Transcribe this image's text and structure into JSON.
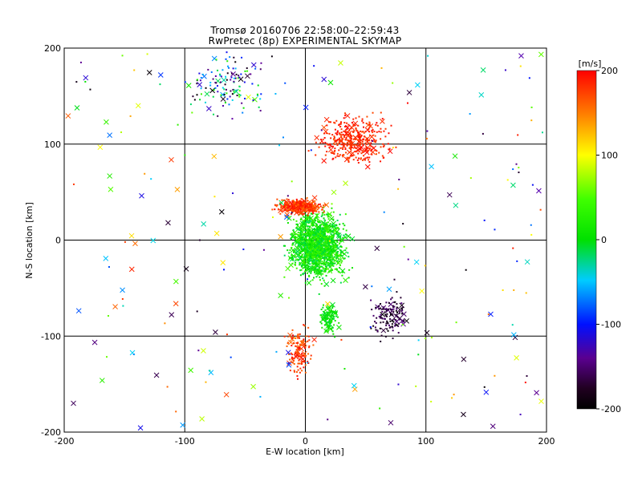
{
  "chart_data": {
    "type": "scatter",
    "title": "Tromsø 20160706 22:58:00–22:59:43",
    "subtitle": "RwPretec (8p) EXPERIMENTAL SKYMAP",
    "xlabel": "E-W location [km]",
    "ylabel": "N-S location [km]",
    "xlim": [
      -200,
      200
    ],
    "ylim": [
      -200,
      200
    ],
    "xticks": [
      "-200",
      "-100",
      "0",
      "100",
      "200"
    ],
    "yticks": [
      "-200",
      "-100",
      "0",
      "100",
      "200"
    ],
    "grid": true,
    "colorbar": {
      "label": "[m/s]",
      "range": [
        -200,
        200
      ],
      "ticks": [
        "200",
        "100",
        "0",
        "-100",
        "-200"
      ],
      "colormap": "rainbow (black-purple-blue-cyan-green-yellow-orange-red)"
    },
    "marker_types": [
      "dot",
      "x"
    ],
    "clusters": [
      {
        "region": "center main cluster",
        "x": [
          -20,
          40
        ],
        "y": [
          -50,
          40
        ],
        "velocity_range": [
          -20,
          40
        ],
        "density": "very high"
      },
      {
        "region": "red band center",
        "x": [
          -30,
          20
        ],
        "y": [
          25,
          45
        ],
        "velocity_range": [
          160,
          200
        ],
        "density": "high"
      },
      {
        "region": "northeast red cluster",
        "x": [
          0,
          80
        ],
        "y": [
          70,
          140
        ],
        "velocity_range": [
          170,
          200
        ],
        "density": "high"
      },
      {
        "region": "northwest mixed cluster",
        "x": [
          -110,
          -20
        ],
        "y": [
          120,
          200
        ],
        "velocity_range": [
          -200,
          60
        ],
        "density": "medium"
      },
      {
        "region": "southeast black cluster",
        "x": [
          50,
          90
        ],
        "y": [
          -110,
          -50
        ],
        "velocity_range": [
          -200,
          -150
        ],
        "density": "medium"
      },
      {
        "region": "south red stream",
        "x": [
          -20,
          10
        ],
        "y": [
          -150,
          -80
        ],
        "velocity_range": [
          160,
          200
        ],
        "density": "medium"
      },
      {
        "region": "south green patch",
        "x": [
          10,
          30
        ],
        "y": [
          -105,
          -60
        ],
        "velocity_range": [
          -10,
          20
        ],
        "density": "medium"
      }
    ]
  }
}
